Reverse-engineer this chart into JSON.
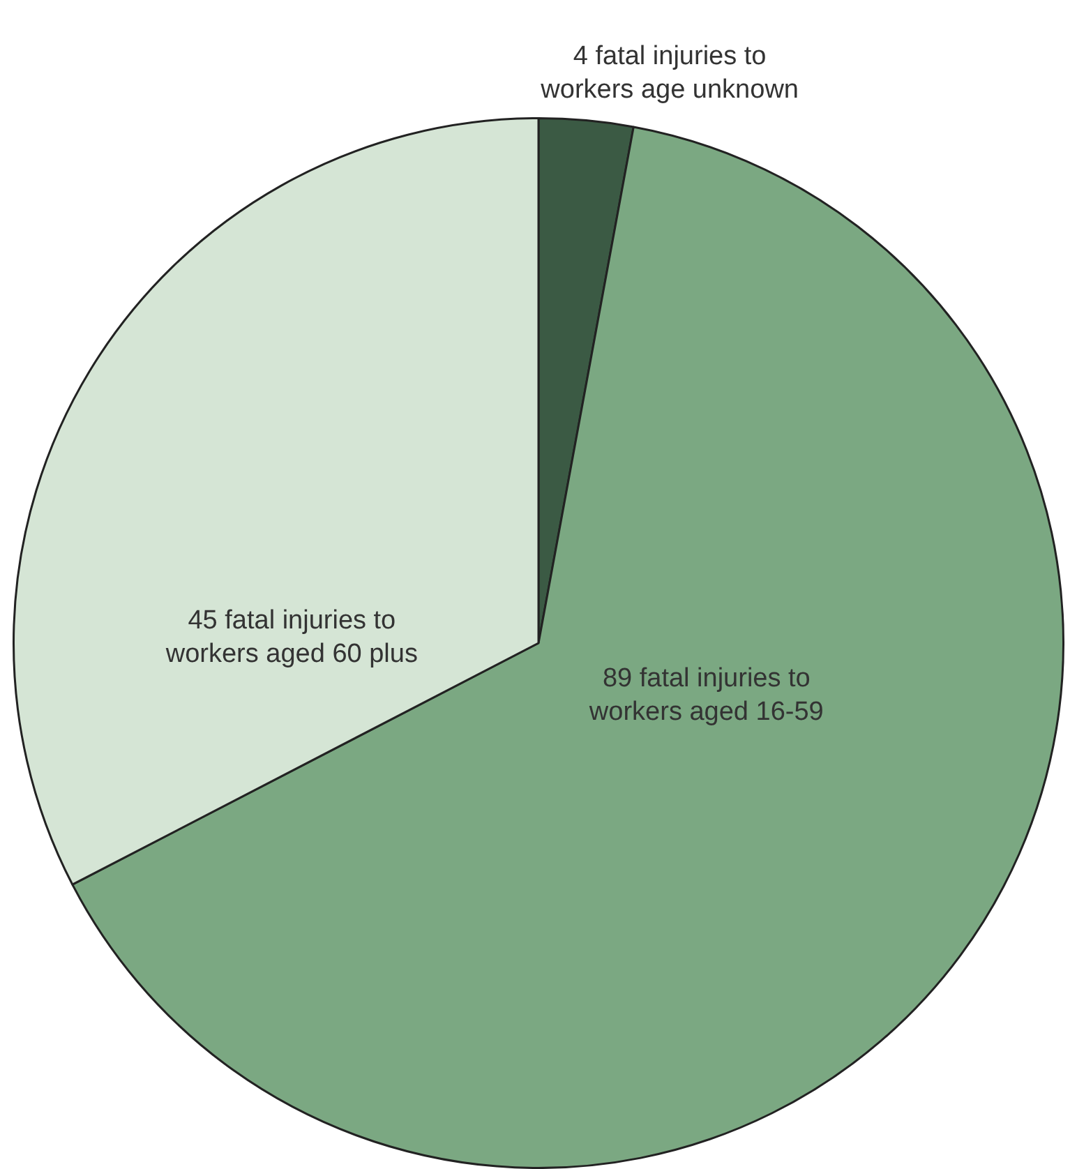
{
  "chart_data": {
    "type": "pie",
    "categories": [
      "4 fatal injuries to workers age unknown",
      "89 fatal injuries to workers aged 16-59",
      "45 fatal injuries to workers aged 60 plus"
    ],
    "values": [
      4,
      89,
      45
    ],
    "colors": [
      "#3b5a44",
      "#7ba882",
      "#d5e5d5"
    ],
    "legend": false
  }
}
